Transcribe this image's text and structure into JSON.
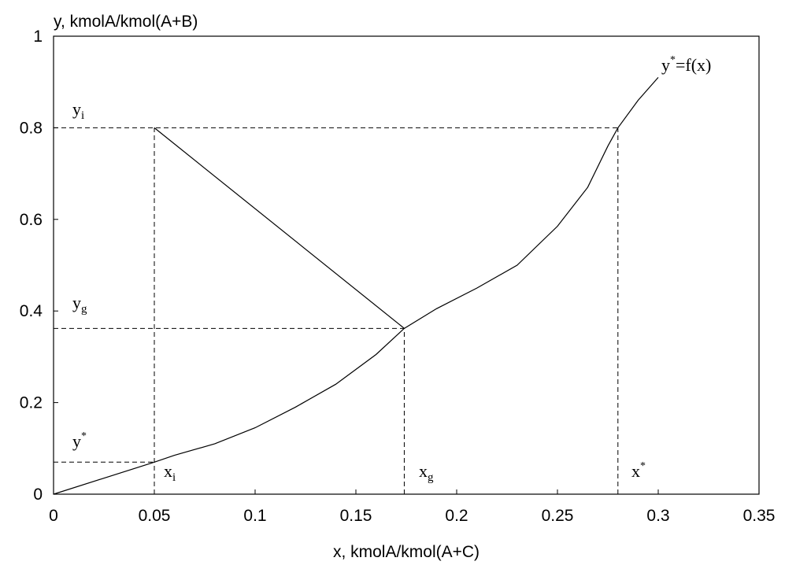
{
  "chart_data": {
    "type": "line",
    "title": "",
    "xlabel": "x, kmolA/kmol(A+C)",
    "ylabel": "y, kmolA/kmol(A+B)",
    "xlim": [
      0,
      0.35
    ],
    "ylim": [
      0,
      1
    ],
    "x_ticks": [
      "0",
      "0.05",
      "0.1",
      "0.15",
      "0.2",
      "0.25",
      "0.3",
      "0.35"
    ],
    "y_ticks": [
      "0",
      "0.2",
      "0.4",
      "0.6",
      "0.8",
      "1"
    ],
    "grid": false,
    "series": [
      {
        "name": "y*=f(x)",
        "x": [
          0.0,
          0.05,
          0.06,
          0.08,
          0.1,
          0.12,
          0.14,
          0.16,
          0.174,
          0.19,
          0.21,
          0.23,
          0.25,
          0.265,
          0.275,
          0.28,
          0.29,
          0.3
        ],
        "y": [
          0.0,
          0.07,
          0.085,
          0.11,
          0.145,
          0.19,
          0.24,
          0.305,
          0.362,
          0.405,
          0.45,
          0.5,
          0.585,
          0.67,
          0.76,
          0.8,
          0.86,
          0.91
        ]
      }
    ],
    "operating_line": {
      "x": [
        0.05,
        0.174
      ],
      "y": [
        0.8,
        0.362
      ]
    },
    "guides": {
      "yi": {
        "y": 0.8,
        "x_end": 0.28
      },
      "yg": {
        "y": 0.362,
        "x_end": 0.174
      },
      "ystar": {
        "y": 0.07,
        "x_end": 0.05
      },
      "xi": {
        "x": 0.05,
        "y_end": 0.8
      },
      "xg": {
        "x": 0.174,
        "y_end": 0.362
      },
      "xstar": {
        "x": 0.28,
        "y_end": 0.8
      }
    },
    "annotations": {
      "curve_label": {
        "base": "y",
        "sup": "*",
        "rest": "=f(x)"
      },
      "yi": {
        "base": "y",
        "sub": "i"
      },
      "yg": {
        "base": "y",
        "sub": "g"
      },
      "ystar": {
        "base": "y",
        "sup": "*"
      },
      "xi": {
        "base": "x",
        "sub": "i"
      },
      "xg": {
        "base": "x",
        "sub": "g"
      },
      "xstar": {
        "base": "x",
        "sup": "*"
      }
    }
  }
}
